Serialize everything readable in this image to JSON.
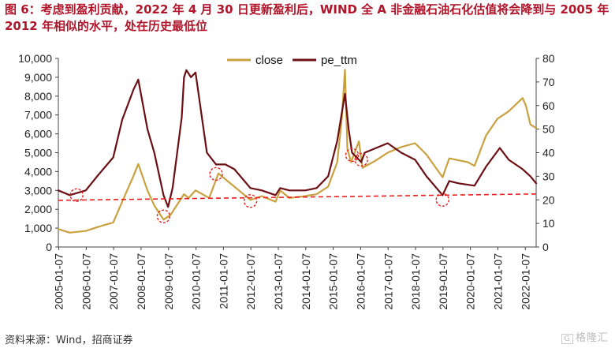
{
  "figure_title": "图 6：考虑到盈利贡献，2022 年 4 月 30 日更新盈利后，WIND 全 A 非金融石油石化估值将会降到与 2005 年 2012 年相似的水平，处在历史最低位",
  "source_note": "资料来源：Wind，招商证券",
  "watermark": {
    "text": "格隆汇",
    "box": "G"
  },
  "colors": {
    "close": "#c9a13f",
    "pe_ttm": "#6b0f14",
    "reference_line": "#e8201f",
    "title": "#b0152a",
    "marker": "#e8201f"
  },
  "chart_data": {
    "type": "line",
    "title": "",
    "xlabel": "",
    "ylabel": "",
    "y_left": {
      "min": 0,
      "max": 10000,
      "ticks": [
        0,
        1000,
        2000,
        3000,
        4000,
        5000,
        6000,
        7000,
        8000,
        9000,
        10000
      ],
      "tick_labels": [
        "0",
        "1,000",
        "2,000",
        "3,000",
        "4,000",
        "5,000",
        "6,000",
        "7,000",
        "8,000",
        "9,000",
        "10,000"
      ]
    },
    "y_right": {
      "min": 0,
      "max": 80,
      "ticks": [
        0,
        10,
        20,
        30,
        40,
        50,
        60,
        70,
        80
      ],
      "tick_labels": [
        "0",
        "10",
        "20",
        "30",
        "40",
        "50",
        "60",
        "70",
        "80"
      ]
    },
    "x_range": [
      "2005-01-01",
      "2022-05-31"
    ],
    "x_ticks": [
      "2005-01-07",
      "2006-01-07",
      "2007-01-07",
      "2008-01-07",
      "2009-01-07",
      "2010-01-07",
      "2011-01-07",
      "2012-01-07",
      "2013-01-07",
      "2014-01-07",
      "2015-01-07",
      "2016-01-07",
      "2017-01-07",
      "2018-01-07",
      "2019-01-07",
      "2020-01-07",
      "2021-01-07",
      "2022-01-07"
    ],
    "legend": {
      "placement": "top-center",
      "entries": [
        "close",
        "pe_ttm"
      ]
    },
    "grid": false,
    "series": [
      {
        "name": "close",
        "axis": "left",
        "color": "#c9a13f",
        "x": [
          "2005-01-01",
          "2005-06-01",
          "2006-01-01",
          "2006-06-01",
          "2007-01-01",
          "2007-05-01",
          "2007-10-01",
          "2007-12-01",
          "2008-04-01",
          "2008-07-01",
          "2008-11-01",
          "2009-02-01",
          "2009-08-01",
          "2009-10-01",
          "2010-01-01",
          "2010-07-01",
          "2010-11-01",
          "2011-06-01",
          "2012-01-01",
          "2012-06-01",
          "2012-12-01",
          "2013-02-01",
          "2013-06-01",
          "2014-01-01",
          "2014-06-01",
          "2014-11-01",
          "2015-03-01",
          "2015-05-01",
          "2015-06-12",
          "2015-07-15",
          "2015-09-01",
          "2015-12-15",
          "2016-02-01",
          "2016-08-01",
          "2017-01-01",
          "2017-07-01",
          "2018-01-01",
          "2018-06-01",
          "2019-01-01",
          "2019-04-01",
          "2019-12-01",
          "2020-03-01",
          "2020-08-01",
          "2021-01-01",
          "2021-06-01",
          "2021-12-01",
          "2022-01-15",
          "2022-03-15",
          "2022-05-31"
        ],
        "y": [
          950,
          760,
          850,
          1050,
          1300,
          2400,
          3800,
          4400,
          3000,
          2200,
          1450,
          1700,
          2800,
          2600,
          3000,
          2600,
          3900,
          3200,
          2500,
          2700,
          2400,
          3000,
          2600,
          2700,
          2800,
          3200,
          4500,
          6800,
          9400,
          5200,
          4500,
          5600,
          4200,
          4600,
          5000,
          5300,
          5500,
          4900,
          3700,
          4700,
          4500,
          4300,
          5900,
          6800,
          7200,
          7900,
          7500,
          6500,
          6300
        ]
      },
      {
        "name": "pe_ttm",
        "axis": "right",
        "color": "#6b0f14",
        "x": [
          "2005-01-01",
          "2005-06-01",
          "2006-01-01",
          "2006-06-01",
          "2007-01-01",
          "2007-05-01",
          "2007-10-01",
          "2007-12-01",
          "2008-04-01",
          "2008-07-01",
          "2008-11-01",
          "2009-01-01",
          "2009-03-01",
          "2009-07-01",
          "2009-08-01",
          "2009-09-01",
          "2009-11-01",
          "2010-01-01",
          "2010-06-01",
          "2010-10-01",
          "2011-02-01",
          "2011-06-01",
          "2012-01-01",
          "2012-06-01",
          "2012-12-01",
          "2013-02-01",
          "2013-06-01",
          "2014-01-01",
          "2014-06-01",
          "2014-11-01",
          "2015-03-01",
          "2015-06-12",
          "2015-08-01",
          "2015-09-15",
          "2016-01-15",
          "2016-03-01",
          "2016-08-01",
          "2017-01-01",
          "2017-07-01",
          "2018-01-01",
          "2018-06-01",
          "2019-01-01",
          "2019-04-01",
          "2019-08-01",
          "2020-03-01",
          "2020-08-01",
          "2021-02-01",
          "2021-06-01",
          "2021-12-01",
          "2022-03-15",
          "2022-05-31"
        ],
        "y": [
          24,
          22,
          24,
          30,
          38,
          54,
          67,
          71,
          50,
          40,
          22,
          17,
          25,
          55,
          72,
          75,
          72,
          74,
          40,
          35,
          35,
          33,
          25,
          24,
          22,
          25,
          24,
          24,
          25,
          30,
          45,
          65,
          50,
          40,
          36,
          40,
          42,
          44,
          40,
          37,
          30,
          22,
          28,
          27,
          26,
          34,
          42,
          37,
          33,
          30,
          27
        ]
      }
    ],
    "reference_line": {
      "type": "dashed",
      "axis": "right",
      "from": [
        "2005-01-01",
        19.8
      ],
      "to": [
        "2022-05-31",
        22.5
      ]
    },
    "markers": [
      {
        "x": "2005-09-01",
        "y": 22,
        "axis": "right"
      },
      {
        "x": "2008-11-01",
        "y": 13,
        "axis": "right"
      },
      {
        "x": "2010-10-01",
        "y": 31,
        "axis": "right"
      },
      {
        "x": "2012-01-01",
        "y": 19.5,
        "axis": "right"
      },
      {
        "x": "2015-09-15",
        "y": 39,
        "axis": "right"
      },
      {
        "x": "2016-01-15",
        "y": 37,
        "axis": "right"
      },
      {
        "x": "2019-01-01",
        "y": 20,
        "axis": "right"
      }
    ]
  }
}
